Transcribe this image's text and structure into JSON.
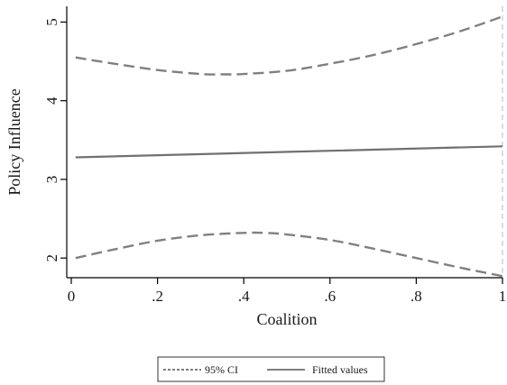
{
  "chart_data": {
    "type": "line",
    "xlabel": "Coalition",
    "ylabel": "Policy Influence",
    "xlim": [
      0,
      1
    ],
    "ylim": [
      1.75,
      5.2
    ],
    "x_ticks": [
      {
        "value": 0,
        "label": "0"
      },
      {
        "value": 0.2,
        "label": ".2"
      },
      {
        "value": 0.4,
        "label": ".4"
      },
      {
        "value": 0.6,
        "label": ".6"
      },
      {
        "value": 0.8,
        "label": ".8"
      },
      {
        "value": 1,
        "label": "1"
      }
    ],
    "y_ticks": [
      {
        "value": 2,
        "label": "2"
      },
      {
        "value": 3,
        "label": "3"
      },
      {
        "value": 4,
        "label": "4"
      },
      {
        "value": 5,
        "label": "5"
      }
    ],
    "grid": false,
    "legend_position": "bottom",
    "colors": {
      "ci": "#808080",
      "fit": "#707070",
      "axis": "#000000"
    },
    "series": [
      {
        "name": "95% CI",
        "style": "dashed",
        "x": [
          0.01,
          0.1,
          0.2,
          0.3,
          0.35,
          0.4,
          0.5,
          0.6,
          0.7,
          0.8,
          0.9,
          1.0
        ],
        "values": [
          4.55,
          4.47,
          4.39,
          4.34,
          4.335,
          4.34,
          4.38,
          4.47,
          4.58,
          4.72,
          4.88,
          5.07
        ]
      },
      {
        "name": "95% CI",
        "style": "dashed",
        "x": [
          0.01,
          0.1,
          0.2,
          0.3,
          0.4,
          0.45,
          0.5,
          0.6,
          0.7,
          0.8,
          0.9,
          1.0
        ],
        "values": [
          2.0,
          2.11,
          2.22,
          2.29,
          2.32,
          2.32,
          2.3,
          2.23,
          2.12,
          2.0,
          1.88,
          1.77
        ]
      },
      {
        "name": "Fitted values",
        "style": "solid",
        "x": [
          0.01,
          1.0
        ],
        "values": [
          3.28,
          3.42
        ]
      }
    ],
    "legend": [
      {
        "label": "95% CI",
        "style": "dashed"
      },
      {
        "label": "Fitted values",
        "style": "solid"
      }
    ]
  }
}
